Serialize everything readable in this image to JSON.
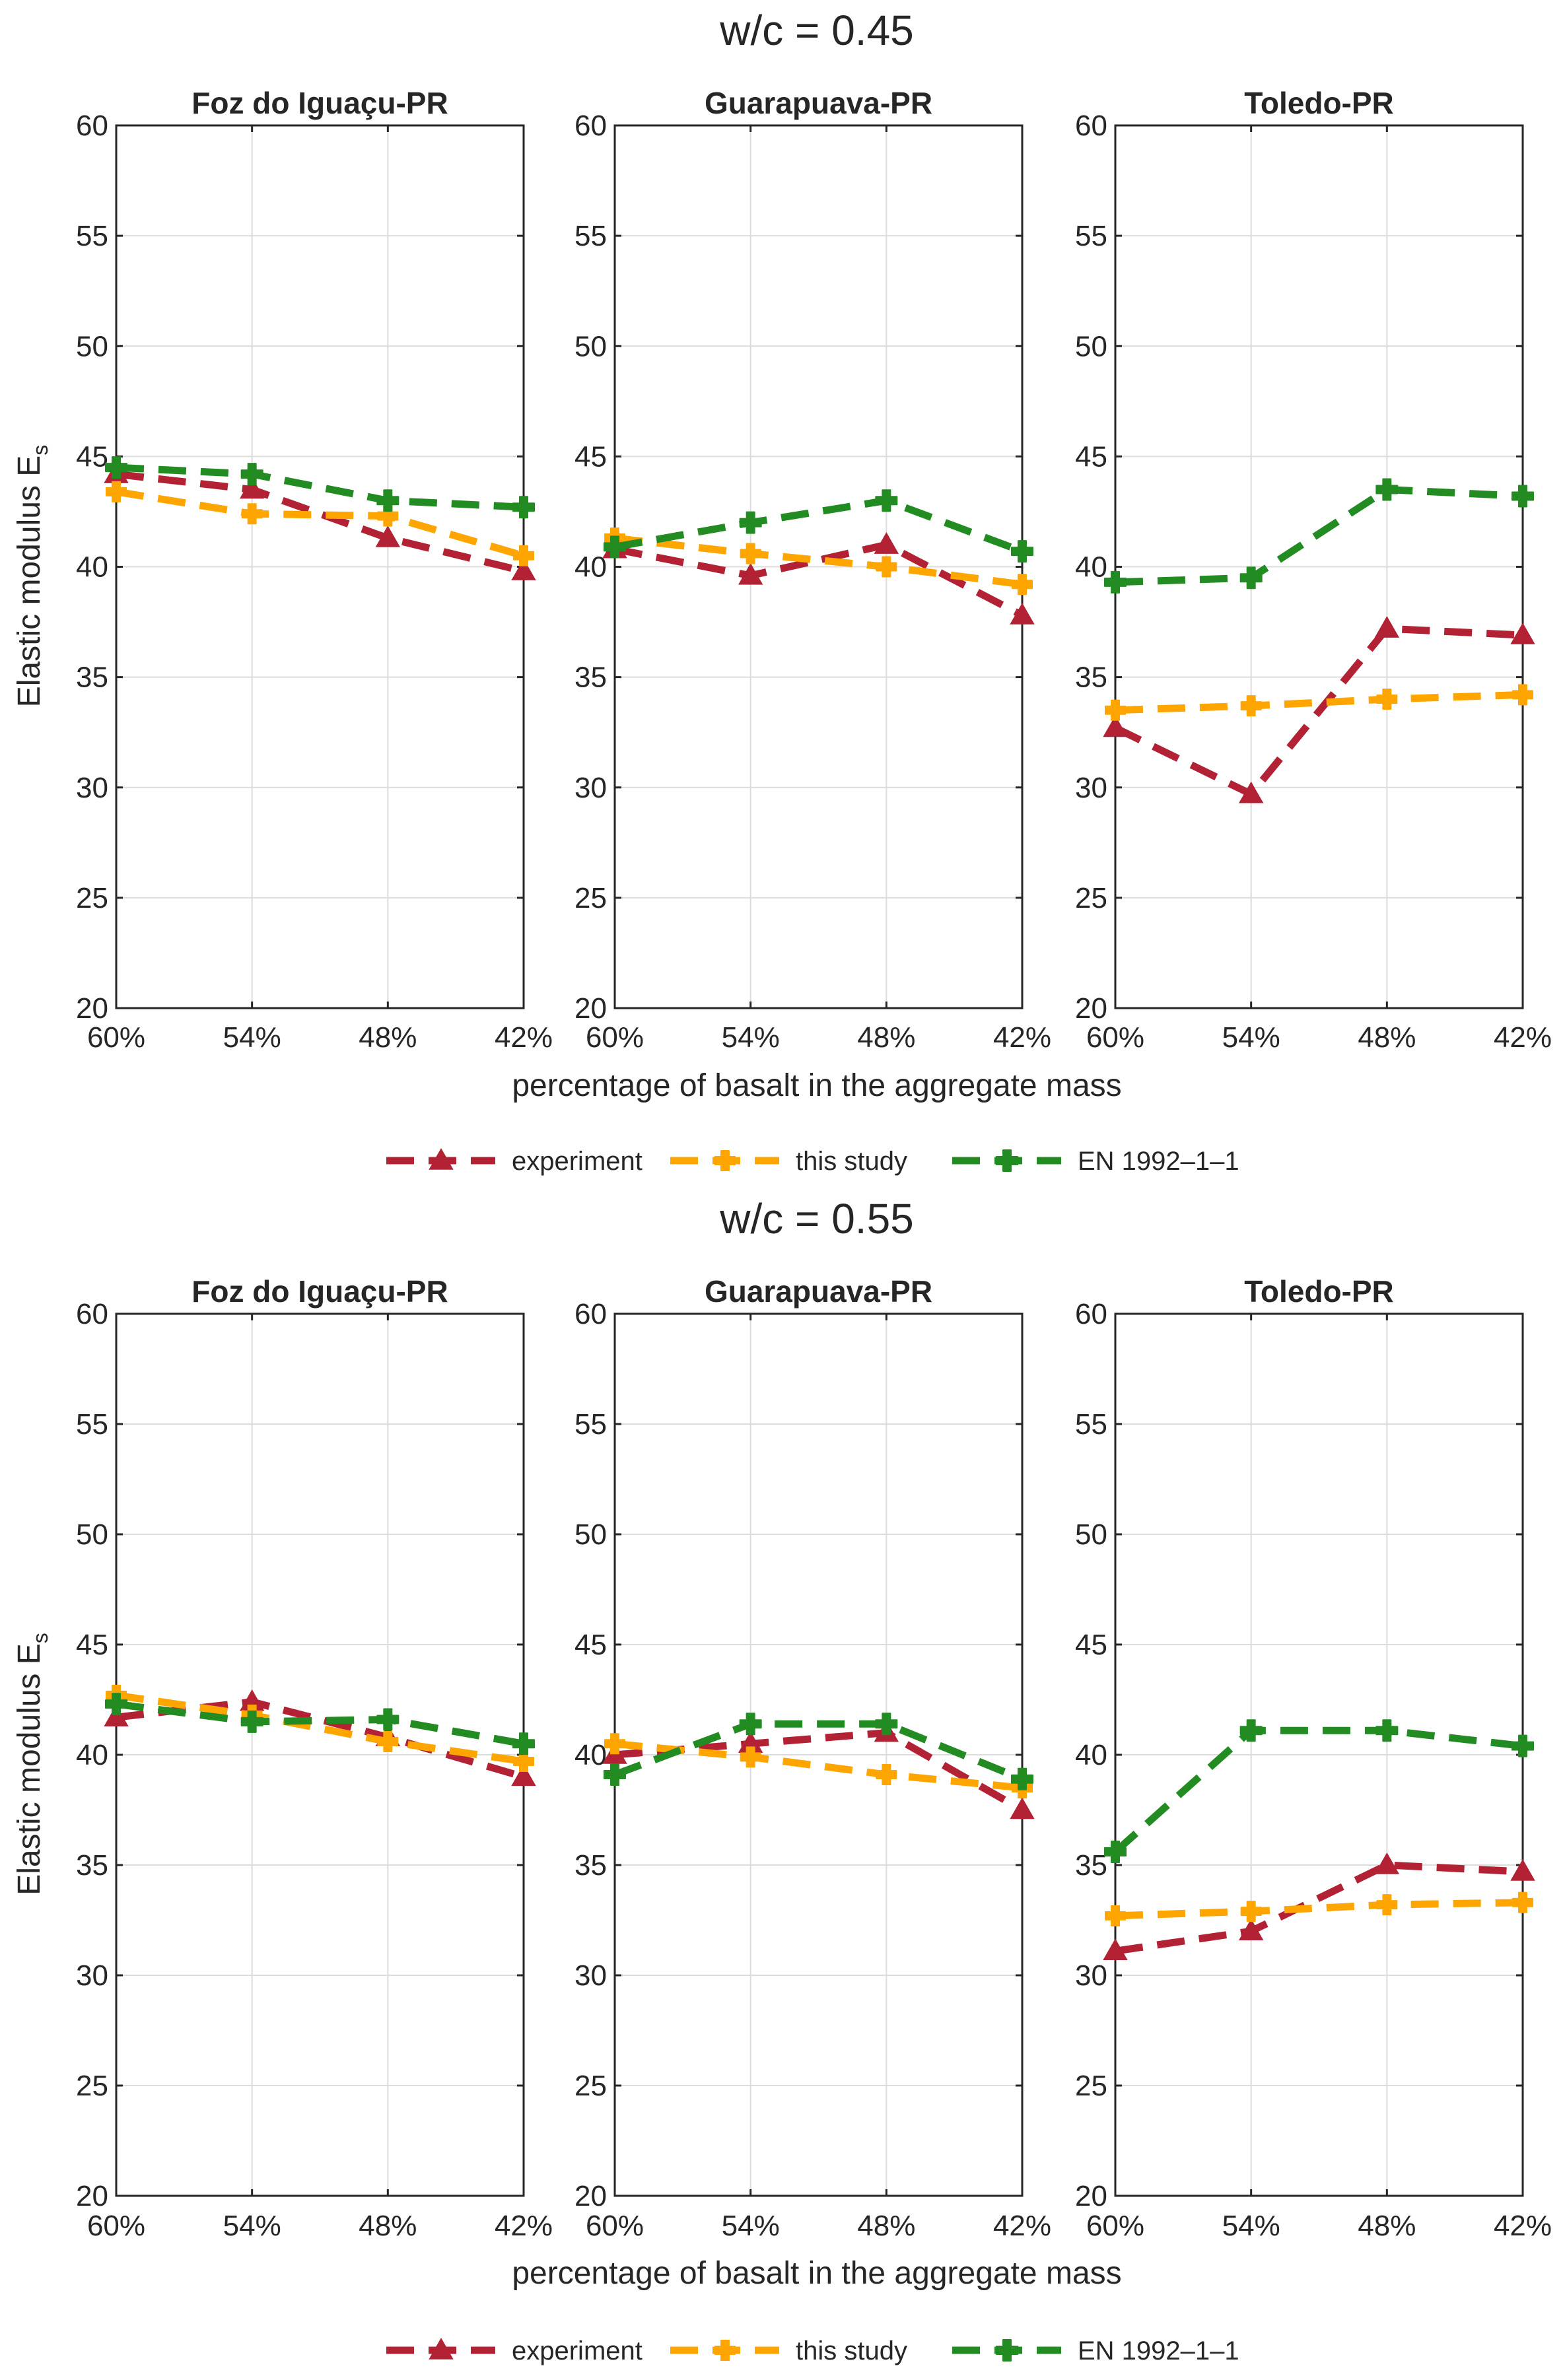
{
  "chart_data": [
    {
      "type": "line",
      "title": "w/c = 0.45",
      "xlabel": "percentage of basalt in the aggregate mass",
      "ylabel": "Elastic modulus E",
      "ylabel_sub": "s",
      "categories": [
        "60%",
        "54%",
        "48%",
        "42%"
      ],
      "ylim": [
        20,
        60
      ],
      "yticks": [
        "20",
        "25",
        "30",
        "35",
        "40",
        "45",
        "50",
        "55",
        "60"
      ],
      "grid": true,
      "legend": {
        "placement": "bottom-center",
        "entries": [
          "experiment",
          "this study",
          "EN 1992–1–1"
        ]
      },
      "panels": [
        {
          "title": "Foz do Iguaçu-PR",
          "series": [
            {
              "name": "experiment",
              "values": [
                44.2,
                43.5,
                41.3,
                39.8
              ]
            },
            {
              "name": "this study",
              "values": [
                43.4,
                42.4,
                42.3,
                40.5
              ]
            },
            {
              "name": "EN 1992–1–1",
              "values": [
                44.5,
                44.2,
                43.0,
                42.7
              ]
            }
          ]
        },
        {
          "title": "Guarapuava-PR",
          "series": [
            {
              "name": "experiment",
              "values": [
                40.8,
                39.6,
                41.0,
                37.8
              ]
            },
            {
              "name": "this study",
              "values": [
                41.3,
                40.6,
                40.0,
                39.2
              ]
            },
            {
              "name": "EN 1992–1–1",
              "values": [
                40.9,
                42.0,
                43.0,
                40.7
              ]
            }
          ]
        },
        {
          "title": "Toledo-PR",
          "series": [
            {
              "name": "experiment",
              "values": [
                32.7,
                29.7,
                37.2,
                36.9
              ]
            },
            {
              "name": "this study",
              "values": [
                33.5,
                33.7,
                34.0,
                34.2
              ]
            },
            {
              "name": "EN 1992–1–1",
              "values": [
                39.3,
                39.5,
                43.5,
                43.2
              ]
            }
          ]
        }
      ]
    },
    {
      "type": "line",
      "title": "w/c = 0.55",
      "xlabel": "percentage of basalt in the aggregate mass",
      "ylabel": "Elastic modulus E",
      "ylabel_sub": "s",
      "categories": [
        "60%",
        "54%",
        "48%",
        "42%"
      ],
      "ylim": [
        20,
        60
      ],
      "yticks": [
        "20",
        "25",
        "30",
        "35",
        "40",
        "45",
        "50",
        "55",
        "60"
      ],
      "grid": true,
      "legend": {
        "placement": "bottom-center",
        "entries": [
          "experiment",
          "this study",
          "EN 1992–1–1"
        ]
      },
      "panels": [
        {
          "title": "Foz do Iguaçu-PR",
          "series": [
            {
              "name": "experiment",
              "values": [
                41.7,
                42.4,
                40.8,
                39.0
              ]
            },
            {
              "name": "this study",
              "values": [
                42.7,
                41.8,
                40.6,
                39.7
              ]
            },
            {
              "name": "EN 1992–1–1",
              "values": [
                42.3,
                41.5,
                41.6,
                40.5
              ]
            }
          ]
        },
        {
          "title": "Guarapuava-PR",
          "series": [
            {
              "name": "experiment",
              "values": [
                40.0,
                40.5,
                41.0,
                37.5
              ]
            },
            {
              "name": "this study",
              "values": [
                40.5,
                39.9,
                39.1,
                38.5
              ]
            },
            {
              "name": "EN 1992–1–1",
              "values": [
                39.1,
                41.4,
                41.4,
                38.9
              ]
            }
          ]
        },
        {
          "title": "Toledo-PR",
          "series": [
            {
              "name": "experiment",
              "values": [
                31.1,
                32.0,
                35.0,
                34.7
              ]
            },
            {
              "name": "this study",
              "values": [
                32.7,
                32.9,
                33.2,
                33.3
              ]
            },
            {
              "name": "EN 1992–1–1",
              "values": [
                35.6,
                41.1,
                41.1,
                40.4
              ]
            }
          ]
        }
      ]
    }
  ],
  "style": {
    "series_colors": [
      "#b22234",
      "#ffa500",
      "#228b22"
    ],
    "series_markers": [
      "triangle",
      "square",
      "circle"
    ]
  }
}
